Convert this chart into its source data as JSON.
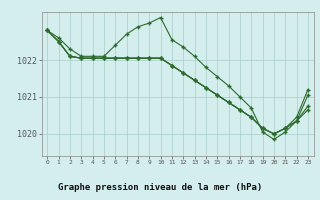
{
  "title": "Graphe pression niveau de la mer (hPa)",
  "background_color": "#d4eeee",
  "grid_color": "#aacccc",
  "line_color": "#2d6a2d",
  "xlim": [
    -0.5,
    23.5
  ],
  "ylim": [
    1019.4,
    1023.3
  ],
  "yticks": [
    1020,
    1021,
    1022
  ],
  "xticks": [
    0,
    1,
    2,
    3,
    4,
    5,
    6,
    7,
    8,
    9,
    10,
    11,
    12,
    13,
    14,
    15,
    16,
    17,
    18,
    19,
    20,
    21,
    22,
    23
  ],
  "series": [
    [
      1022.8,
      1022.6,
      1022.3,
      1022.1,
      1022.1,
      1022.1,
      1022.4,
      1022.7,
      1022.9,
      1023.0,
      1023.15,
      1022.55,
      1022.35,
      1022.1,
      1021.8,
      1021.55,
      1021.3,
      1021.0,
      1020.7,
      1020.05,
      1019.85,
      1020.05,
      1020.35,
      1021.05
    ],
    [
      1022.8,
      1022.5,
      1022.1,
      1022.05,
      1022.05,
      1022.05,
      1022.05,
      1022.05,
      1022.05,
      1022.05,
      1022.05,
      1021.85,
      1021.65,
      1021.45,
      1021.25,
      1021.05,
      1020.85,
      1020.65,
      1020.45,
      1020.15,
      1020.0,
      1020.15,
      1020.35,
      1020.65
    ],
    [
      1022.8,
      1022.5,
      1022.1,
      1022.05,
      1022.05,
      1022.05,
      1022.05,
      1022.05,
      1022.05,
      1022.05,
      1022.05,
      1021.85,
      1021.65,
      1021.45,
      1021.25,
      1021.05,
      1020.85,
      1020.65,
      1020.45,
      1020.15,
      1020.0,
      1020.15,
      1020.35,
      1020.75
    ],
    [
      1022.8,
      1022.5,
      1022.1,
      1022.05,
      1022.05,
      1022.05,
      1022.05,
      1022.05,
      1022.05,
      1022.05,
      1022.05,
      1021.85,
      1021.65,
      1021.45,
      1021.25,
      1021.05,
      1020.85,
      1020.65,
      1020.45,
      1020.15,
      1020.0,
      1020.15,
      1020.45,
      1021.2
    ]
  ]
}
